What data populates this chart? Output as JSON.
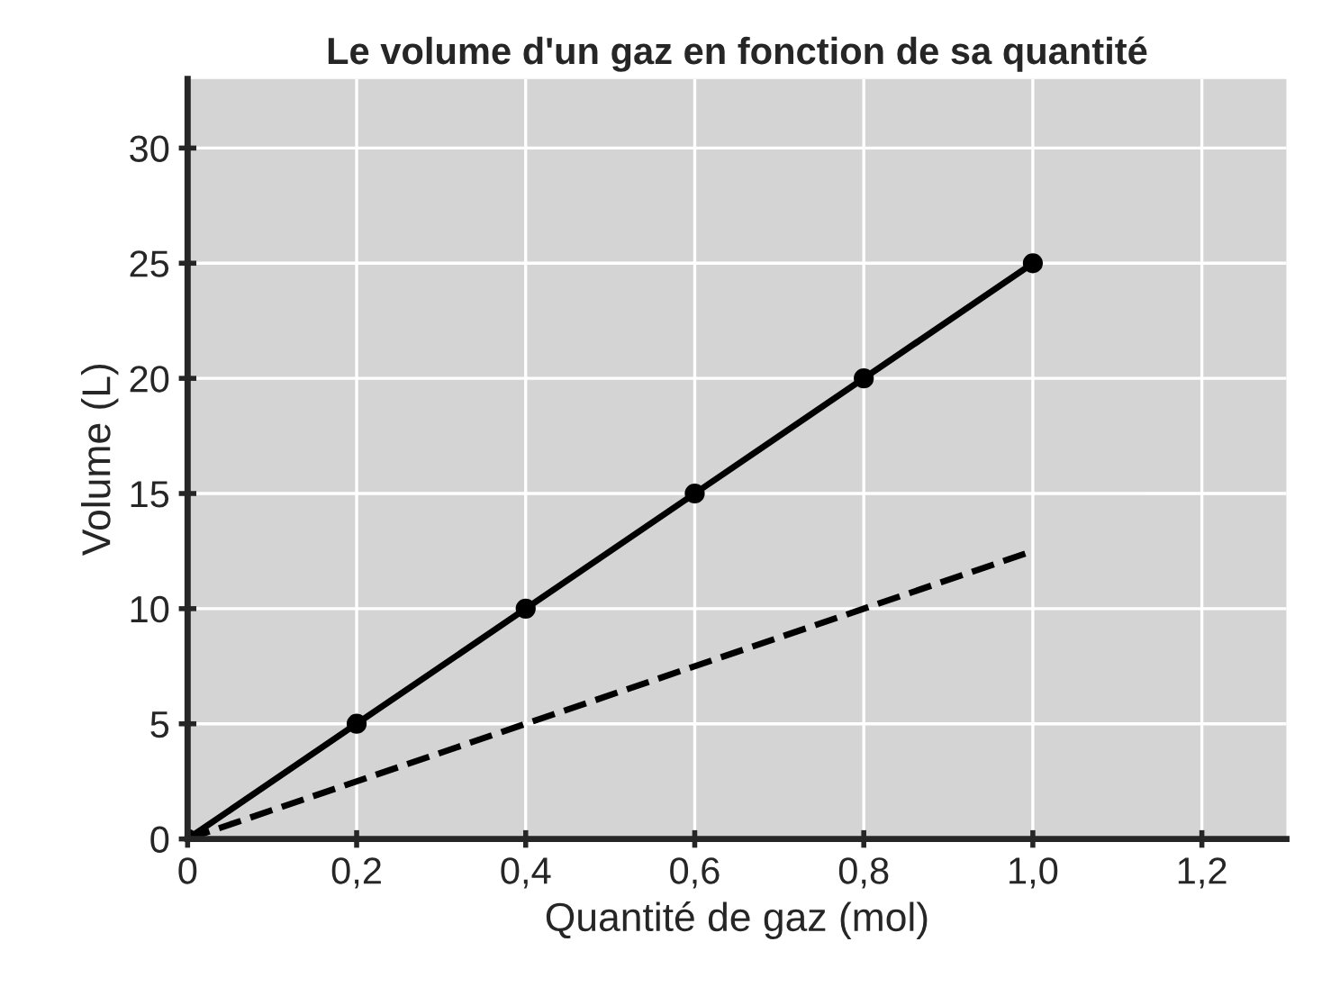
{
  "chart_data": {
    "type": "line",
    "title": "Le volume d'un gaz en fonction de sa quantité",
    "xlabel": "Quantité de gaz (mol)",
    "ylabel": "Volume (L)",
    "xlim": [
      0,
      1.3
    ],
    "ylim": [
      0,
      33
    ],
    "xticks": [
      {
        "value": 0,
        "label": "0"
      },
      {
        "value": 0.2,
        "label": "0,2"
      },
      {
        "value": 0.4,
        "label": "0,4"
      },
      {
        "value": 0.6,
        "label": "0,6"
      },
      {
        "value": 0.8,
        "label": "0,8"
      },
      {
        "value": 1.0,
        "label": "1,0"
      },
      {
        "value": 1.2,
        "label": "1,2"
      }
    ],
    "yticks": [
      0,
      5,
      10,
      15,
      20,
      25,
      30
    ],
    "grid": true,
    "series": [
      {
        "color": "#000000",
        "x": [
          0,
          0.2,
          0.4,
          0.6,
          0.8,
          1.0
        ],
        "values": [
          0,
          5,
          10,
          15,
          20,
          25
        ],
        "marker": "circle",
        "line_style": "solid"
      },
      {
        "color": "#000000",
        "x": [
          0,
          1.0
        ],
        "values": [
          0,
          12.5
        ],
        "marker": "none",
        "line_style": "dashed"
      }
    ]
  }
}
